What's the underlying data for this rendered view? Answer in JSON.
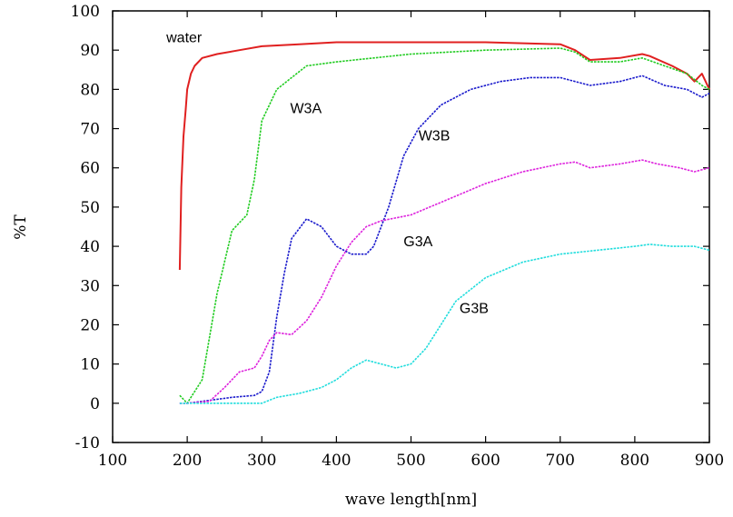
{
  "chart_data": {
    "type": "line",
    "xlabel": "wave length[nm]",
    "ylabel": "%T",
    "xlim": [
      100,
      900
    ],
    "ylim": [
      -10,
      100
    ],
    "xticks": [
      100,
      200,
      300,
      400,
      500,
      600,
      700,
      800,
      900
    ],
    "yticks": [
      -10,
      0,
      10,
      20,
      30,
      40,
      50,
      60,
      70,
      80,
      90,
      100
    ],
    "grid": false,
    "legend": "none",
    "series": [
      {
        "name": "water",
        "color": "#e02020",
        "x": [
          190,
          192,
          195,
          198,
          200,
          205,
          210,
          220,
          240,
          270,
          300,
          350,
          400,
          500,
          600,
          700,
          720,
          740,
          780,
          810,
          820,
          850,
          870,
          880,
          890,
          900
        ],
        "y": [
          34,
          55,
          68,
          75,
          80,
          84,
          86,
          88,
          89,
          90,
          91,
          91.5,
          92,
          92,
          92,
          91.5,
          90,
          87.5,
          88,
          89,
          88.5,
          86,
          84,
          82,
          84,
          80
        ]
      },
      {
        "name": "W3A",
        "color": "#22cc22",
        "x": [
          190,
          200,
          220,
          240,
          260,
          280,
          290,
          300,
          320,
          340,
          360,
          400,
          450,
          500,
          600,
          700,
          720,
          740,
          780,
          810,
          840,
          870,
          890,
          900
        ],
        "y": [
          2,
          0,
          6,
          28,
          44,
          48,
          57,
          72,
          80,
          83,
          86,
          87,
          88,
          89,
          90,
          90.5,
          89.5,
          87,
          87,
          88,
          86,
          84,
          81,
          80
        ]
      },
      {
        "name": "W3B",
        "color": "#1a1acc",
        "x": [
          190,
          200,
          220,
          260,
          290,
          300,
          310,
          320,
          330,
          340,
          360,
          380,
          400,
          420,
          440,
          450,
          470,
          490,
          510,
          540,
          580,
          620,
          660,
          700,
          720,
          740,
          780,
          810,
          840,
          870,
          890,
          900
        ],
        "y": [
          0,
          0,
          0.5,
          1.5,
          2,
          3,
          8,
          22,
          33,
          42,
          47,
          45,
          40,
          38,
          38,
          40,
          50,
          63,
          70,
          76,
          80,
          82,
          83,
          83,
          82,
          81,
          82,
          83.5,
          81,
          80,
          78,
          79
        ]
      },
      {
        "name": "G3A",
        "color": "#dd22dd",
        "x": [
          190,
          200,
          230,
          250,
          270,
          290,
          300,
          310,
          320,
          340,
          360,
          380,
          400,
          420,
          440,
          460,
          500,
          550,
          600,
          650,
          700,
          720,
          740,
          780,
          810,
          830,
          860,
          880,
          900
        ],
        "y": [
          0,
          0,
          0.5,
          4,
          8,
          9,
          12,
          16,
          18,
          17.5,
          21,
          27,
          35,
          41,
          45,
          46.5,
          48,
          52,
          56,
          59,
          61,
          61.5,
          60,
          61,
          62,
          61,
          60,
          59,
          60
        ]
      },
      {
        "name": "G3B",
        "color": "#22dddd",
        "x": [
          190,
          200,
          250,
          300,
          320,
          350,
          380,
          400,
          420,
          440,
          460,
          480,
          500,
          520,
          540,
          560,
          600,
          650,
          700,
          750,
          800,
          820,
          850,
          880,
          900
        ],
        "y": [
          0,
          0,
          0,
          0,
          1.5,
          2.5,
          4,
          6,
          9,
          11,
          10,
          9,
          10,
          14,
          20,
          26,
          32,
          36,
          38,
          39,
          40,
          40.5,
          40,
          40,
          39
        ]
      }
    ],
    "annotations": [
      {
        "text": "water",
        "x": 172,
        "y": 92
      },
      {
        "text": "W3A",
        "x": 338,
        "y": 74
      },
      {
        "text": "W3B",
        "x": 510,
        "y": 67
      },
      {
        "text": "G3A",
        "x": 490,
        "y": 40
      },
      {
        "text": "G3B",
        "x": 565,
        "y": 23
      }
    ]
  }
}
